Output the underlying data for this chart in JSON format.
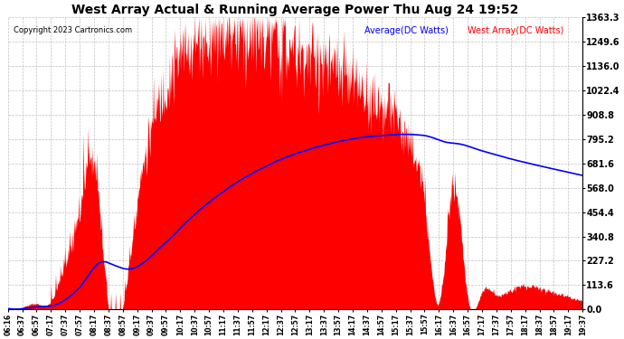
{
  "title": "West Array Actual & Running Average Power Thu Aug 24 19:52",
  "copyright": "Copyright 2023 Cartronics.com",
  "legend_avg": "Average(DC Watts)",
  "legend_west": "West Array(DC Watts)",
  "ymax": 1363.3,
  "ymin": 0.0,
  "yticks": [
    0.0,
    113.6,
    227.2,
    340.8,
    454.4,
    568.0,
    681.6,
    795.2,
    908.8,
    1022.4,
    1136.0,
    1249.6,
    1363.3
  ],
  "bg_color": "#ffffff",
  "fill_color": "#ff0000",
  "avg_line_color": "#0000ff",
  "grid_color": "#cccccc",
  "title_color": "#000000",
  "copyright_color": "#000000",
  "avg_legend_color": "#0000ff",
  "west_legend_color": "#ff0000",
  "time_labels": [
    "06:16",
    "06:37",
    "06:57",
    "07:17",
    "07:37",
    "07:57",
    "08:17",
    "08:37",
    "08:57",
    "09:17",
    "09:37",
    "09:57",
    "10:17",
    "10:37",
    "10:57",
    "11:17",
    "11:37",
    "11:57",
    "12:17",
    "12:37",
    "12:57",
    "13:17",
    "13:37",
    "13:57",
    "14:17",
    "14:37",
    "14:57",
    "15:17",
    "15:37",
    "15:57",
    "16:17",
    "16:37",
    "16:57",
    "17:17",
    "17:37",
    "17:57",
    "18:17",
    "18:37",
    "18:57",
    "19:17",
    "19:37"
  ]
}
